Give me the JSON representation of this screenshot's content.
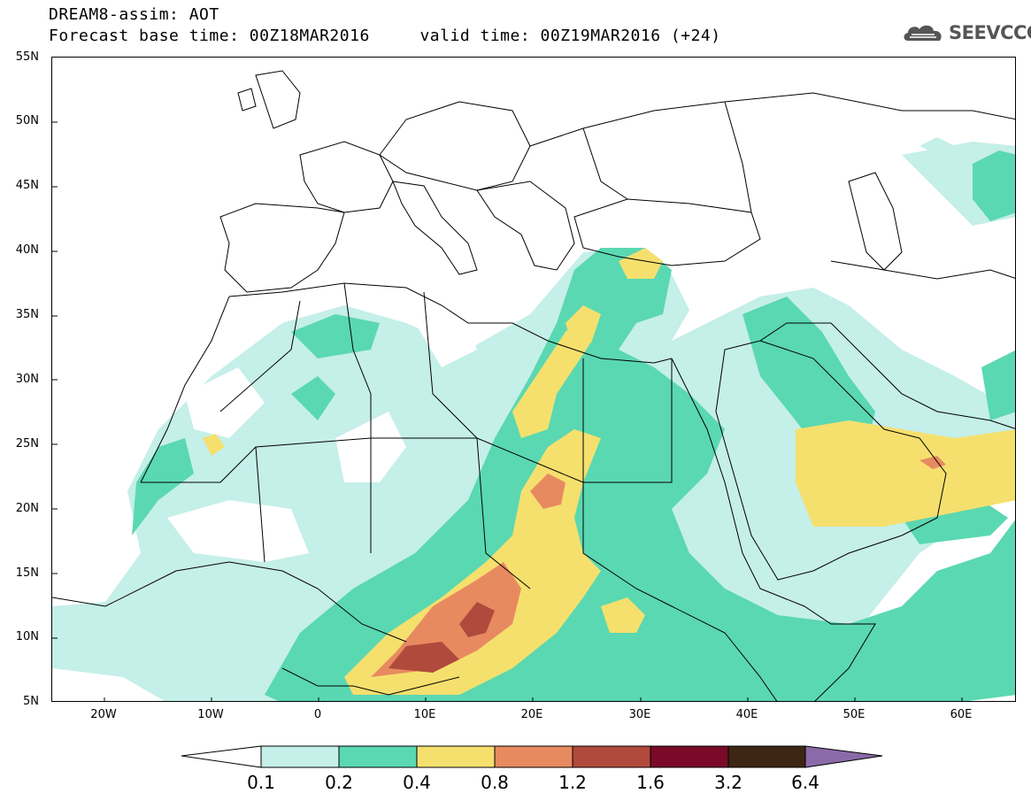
{
  "header": {
    "title_line1": "DREAM8-assim: AOT",
    "title_line2": "Forecast base time: 00Z18MAR2016     valid time: 00Z19MAR2016 (+24)",
    "logo_text": "SEEVCCC"
  },
  "map": {
    "lon_range": [
      -25,
      65
    ],
    "lat_range": [
      5,
      55
    ],
    "lat_labels": [
      "55N",
      "50N",
      "45N",
      "40N",
      "35N",
      "30N",
      "25N",
      "20N",
      "15N",
      "10N",
      "5N"
    ],
    "lon_labels": [
      "20W",
      "10W",
      "0",
      "10E",
      "20E",
      "30E",
      "40E",
      "50E",
      "60E"
    ]
  },
  "legend": {
    "labels": [
      "0.1",
      "0.2",
      "0.4",
      "0.8",
      "1.2",
      "1.6",
      "3.2",
      "6.4"
    ],
    "colors": [
      "#c5efe9",
      "#5ad8b1",
      "#f5e06e",
      "#e88a60",
      "#b04a3c",
      "#7a0a28",
      "#3e2614",
      "#8a6aa8"
    ]
  },
  "colors": {
    "aot_0_1": "#c5efe9",
    "aot_0_2": "#5ad8b1",
    "aot_0_4": "#f5e06e",
    "aot_0_8": "#e88a60",
    "aot_1_2": "#b04a3c",
    "aot_1_6": "#7a0a28",
    "aot_3_2": "#3e2614",
    "aot_6_4": "#8a6aa8"
  }
}
